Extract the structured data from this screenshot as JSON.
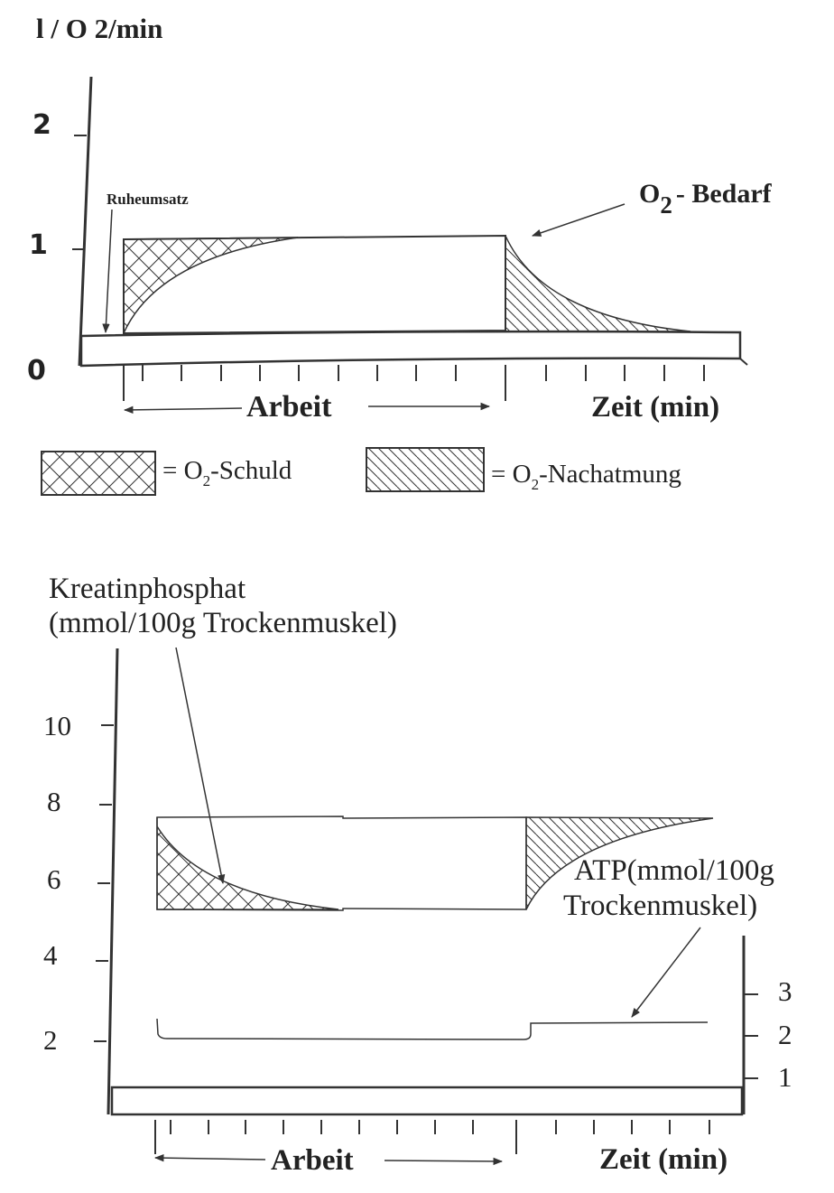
{
  "top_chart": {
    "y_axis_title": "l / O 2/min",
    "y_ticks": [
      "2",
      "1",
      "0"
    ],
    "annotation_rest": "Ruheumsatz",
    "annotation_demand_prefix": "O",
    "annotation_demand_sub": "2",
    "annotation_demand_suffix": "- Bedarf",
    "x_work_label": "Arbeit",
    "x_time_label": "Zeit (min)",
    "legend": [
      {
        "prefix": "= O",
        "sub": "2",
        "suffix": "-Schuld",
        "pattern": "crosshatch"
      },
      {
        "prefix": "= O",
        "sub": "2",
        "suffix": "-Nachatmung",
        "pattern": "diagonal"
      }
    ]
  },
  "bottom_chart": {
    "kp_label_line1": "Kreatinphosphat",
    "kp_label_line2": "(mmol/100g Trockenmuskel)",
    "left_y_ticks": [
      "10",
      "8",
      "6",
      "4",
      "2"
    ],
    "atp_label_line1": "ATP(mmol/100g",
    "atp_label_line2": "Trockenmuskel)",
    "right_y_ticks": [
      "3",
      "2",
      "1"
    ],
    "x_work_label": "Arbeit",
    "x_time_label": "Zeit (min)"
  },
  "colors": {
    "ink": "#222222",
    "background": "#ffffff"
  }
}
